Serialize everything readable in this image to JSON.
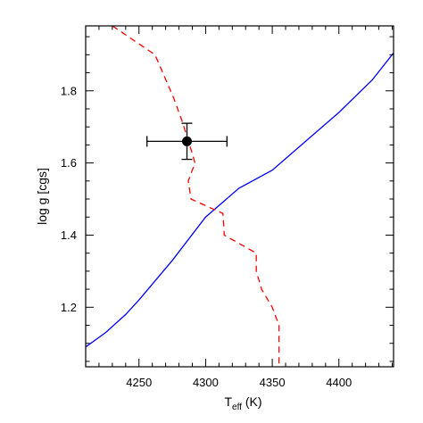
{
  "chart_data": {
    "type": "line",
    "xlabel": {
      "main": "T",
      "sub": "eff",
      "unit": " (K)"
    },
    "ylabel": "log g [cgs]",
    "xlim": [
      4210,
      4441
    ],
    "ylim": [
      1.035,
      1.98
    ],
    "xticks": [
      4250,
      4300,
      4350,
      4400
    ],
    "yticks": [
      1.2,
      1.4,
      1.6,
      1.8
    ],
    "xtick_labels": [
      "4250",
      "4300",
      "4350",
      "4400"
    ],
    "ytick_labels": [
      "1.2",
      "1.4",
      "1.6",
      "1.8"
    ],
    "series": [
      {
        "style": "solid",
        "color": "#0000ff",
        "points": [
          [
            4210,
            1.09
          ],
          [
            4225,
            1.13
          ],
          [
            4240,
            1.18
          ],
          [
            4250,
            1.22
          ],
          [
            4275,
            1.33
          ],
          [
            4300,
            1.45
          ],
          [
            4325,
            1.53
          ],
          [
            4350,
            1.58
          ],
          [
            4375,
            1.66
          ],
          [
            4400,
            1.74
          ],
          [
            4425,
            1.83
          ],
          [
            4441,
            1.905
          ]
        ]
      },
      {
        "style": "dashed",
        "color": "#ff0000",
        "points": [
          [
            4230,
            1.98
          ],
          [
            4262,
            1.9
          ],
          [
            4276,
            1.78
          ],
          [
            4282,
            1.72
          ],
          [
            4288,
            1.65
          ],
          [
            4292,
            1.6
          ],
          [
            4287,
            1.55
          ],
          [
            4289,
            1.5
          ],
          [
            4313,
            1.46
          ],
          [
            4314,
            1.4
          ],
          [
            4338,
            1.35
          ],
          [
            4338,
            1.3
          ],
          [
            4342,
            1.25
          ],
          [
            4350,
            1.2
          ],
          [
            4355,
            1.15
          ],
          [
            4355,
            1.1
          ],
          [
            4355,
            1.035
          ]
        ]
      }
    ],
    "points_with_errors": [
      {
        "x": 4286,
        "y": 1.66,
        "xerr": 30,
        "yerr": 0.05,
        "color": "#000000"
      }
    ]
  }
}
